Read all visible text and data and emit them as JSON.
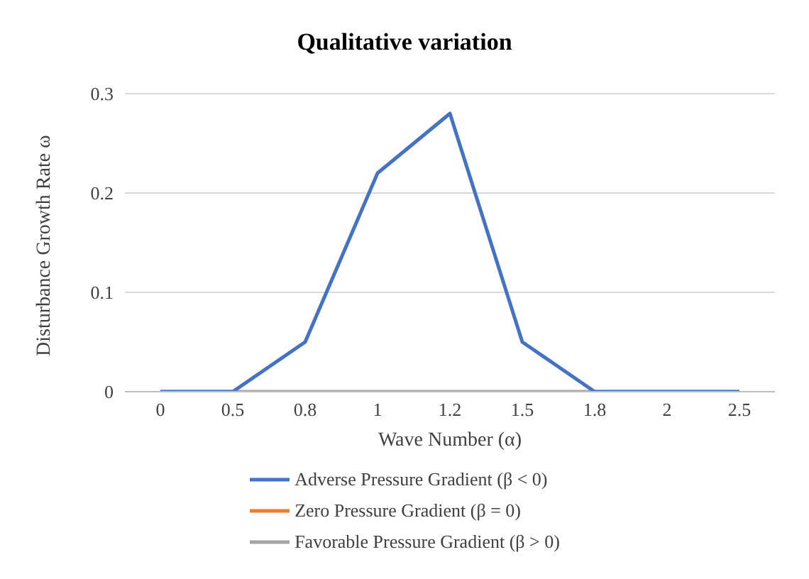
{
  "chart_data": {
    "type": "line",
    "title": "Qualitative variation",
    "xlabel": "Wave Number (α)",
    "ylabel": "Disturbance Growth Rate ω",
    "categories": [
      "0",
      "0.5",
      "0.8",
      "1",
      "1.2",
      "1.5",
      "1.8",
      "2",
      "2.5"
    ],
    "series": [
      {
        "name": "Adverse Pressure Gradient (β < 0)",
        "color": "#4472c4",
        "values": [
          0,
          0,
          0.05,
          0.22,
          0.28,
          0.05,
          0,
          0,
          0
        ]
      },
      {
        "name": "Zero Pressure Gradient (β = 0)",
        "color": "#ed7d31",
        "values": [
          null,
          null,
          null,
          null,
          null,
          null,
          null,
          null,
          null
        ]
      },
      {
        "name": "Favorable Pressure Gradient (β > 0)",
        "color": "#a5a5a5",
        "values": [
          0,
          0,
          0,
          0,
          0,
          0,
          0,
          0,
          0
        ]
      }
    ],
    "ylim": [
      0,
      0.3
    ],
    "yticks": [
      0,
      0.1,
      0.2,
      0.3
    ],
    "grid": "y",
    "legend": "bottom",
    "marker": "none",
    "line_style": "solid"
  }
}
